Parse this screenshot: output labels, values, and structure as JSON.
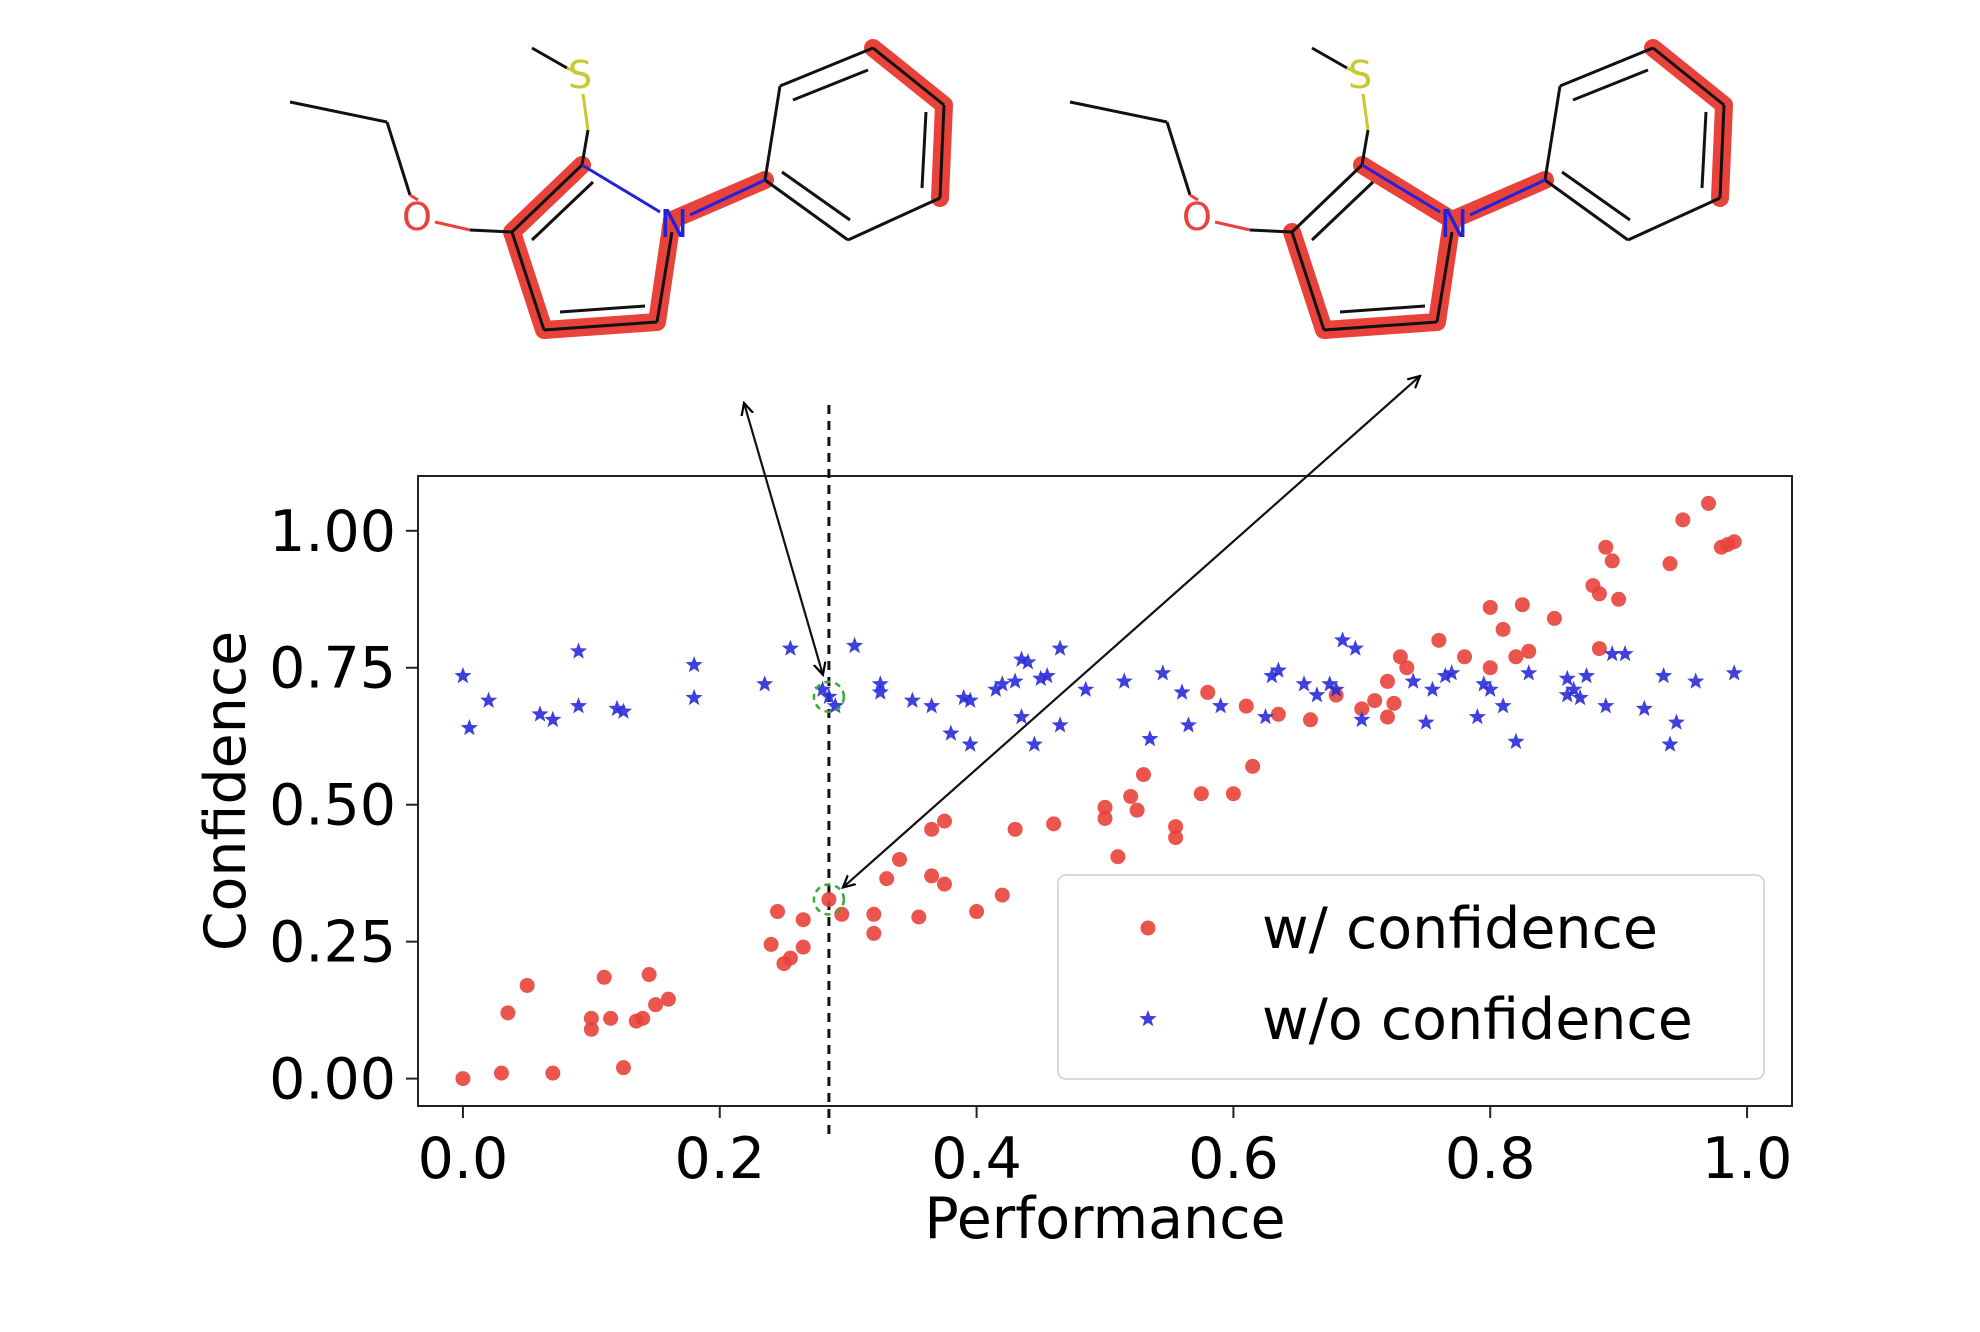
{
  "chart_data": {
    "type": "scatter",
    "title": "",
    "xlabel": "Performance",
    "ylabel": "Confidence",
    "xlim": [
      -0.035,
      1.035
    ],
    "ylim": [
      -0.05,
      1.1
    ],
    "xticks": [
      0.0,
      0.2,
      0.4,
      0.6,
      0.8,
      1.0
    ],
    "xtick_labels": [
      "0.0",
      "0.2",
      "0.4",
      "0.6",
      "0.8",
      "1.0"
    ],
    "yticks": [
      0.0,
      0.25,
      0.5,
      0.75,
      1.0
    ],
    "ytick_labels": [
      "0.00",
      "0.25",
      "0.50",
      "0.75",
      "1.00"
    ],
    "grid": false,
    "legend_placement": "lower-right",
    "threshold_line_x": 0.285,
    "highlighted_points": [
      {
        "series": "w/o confidence",
        "x": 0.285,
        "y": 0.697
      },
      {
        "series": "w/ confidence",
        "x": 0.285,
        "y": 0.327
      }
    ],
    "series": [
      {
        "name": "w/ confidence",
        "marker": "circle",
        "color": "#e8423a",
        "points": [
          [
            0.0,
            0.0
          ],
          [
            0.03,
            0.01
          ],
          [
            0.035,
            0.12
          ],
          [
            0.05,
            0.17
          ],
          [
            0.07,
            0.01
          ],
          [
            0.1,
            0.09
          ],
          [
            0.1,
            0.11
          ],
          [
            0.11,
            0.185
          ],
          [
            0.115,
            0.11
          ],
          [
            0.125,
            0.02
          ],
          [
            0.135,
            0.105
          ],
          [
            0.14,
            0.11
          ],
          [
            0.145,
            0.19
          ],
          [
            0.15,
            0.135
          ],
          [
            0.16,
            0.145
          ],
          [
            0.24,
            0.245
          ],
          [
            0.245,
            0.305
          ],
          [
            0.25,
            0.21
          ],
          [
            0.255,
            0.22
          ],
          [
            0.265,
            0.24
          ],
          [
            0.265,
            0.29
          ],
          [
            0.285,
            0.327
          ],
          [
            0.295,
            0.3
          ],
          [
            0.32,
            0.265
          ],
          [
            0.32,
            0.3
          ],
          [
            0.33,
            0.365
          ],
          [
            0.34,
            0.4
          ],
          [
            0.355,
            0.295
          ],
          [
            0.365,
            0.37
          ],
          [
            0.365,
            0.455
          ],
          [
            0.375,
            0.47
          ],
          [
            0.375,
            0.355
          ],
          [
            0.4,
            0.305
          ],
          [
            0.42,
            0.335
          ],
          [
            0.43,
            0.455
          ],
          [
            0.46,
            0.465
          ],
          [
            0.5,
            0.475
          ],
          [
            0.5,
            0.495
          ],
          [
            0.51,
            0.405
          ],
          [
            0.52,
            0.515
          ],
          [
            0.525,
            0.49
          ],
          [
            0.53,
            0.555
          ],
          [
            0.555,
            0.46
          ],
          [
            0.555,
            0.44
          ],
          [
            0.575,
            0.52
          ],
          [
            0.58,
            0.705
          ],
          [
            0.6,
            0.52
          ],
          [
            0.61,
            0.68
          ],
          [
            0.615,
            0.57
          ],
          [
            0.635,
            0.665
          ],
          [
            0.66,
            0.655
          ],
          [
            0.68,
            0.7
          ],
          [
            0.7,
            0.675
          ],
          [
            0.71,
            0.69
          ],
          [
            0.72,
            0.725
          ],
          [
            0.72,
            0.66
          ],
          [
            0.725,
            0.685
          ],
          [
            0.73,
            0.77
          ],
          [
            0.735,
            0.75
          ],
          [
            0.76,
            0.8
          ],
          [
            0.78,
            0.77
          ],
          [
            0.8,
            0.86
          ],
          [
            0.8,
            0.75
          ],
          [
            0.81,
            0.82
          ],
          [
            0.82,
            0.77
          ],
          [
            0.825,
            0.865
          ],
          [
            0.83,
            0.78
          ],
          [
            0.85,
            0.84
          ],
          [
            0.88,
            0.9
          ],
          [
            0.885,
            0.885
          ],
          [
            0.885,
            0.785
          ],
          [
            0.89,
            0.97
          ],
          [
            0.895,
            0.945
          ],
          [
            0.9,
            0.875
          ],
          [
            0.94,
            0.94
          ],
          [
            0.95,
            1.02
          ],
          [
            0.97,
            1.05
          ],
          [
            0.98,
            0.97
          ],
          [
            0.985,
            0.975
          ],
          [
            0.99,
            0.98
          ]
        ]
      },
      {
        "name": "w/o confidence",
        "marker": "star",
        "color": "#2b2bd9",
        "points": [
          [
            0.0,
            0.735
          ],
          [
            0.005,
            0.64
          ],
          [
            0.02,
            0.69
          ],
          [
            0.06,
            0.665
          ],
          [
            0.07,
            0.655
          ],
          [
            0.09,
            0.78
          ],
          [
            0.09,
            0.68
          ],
          [
            0.12,
            0.675
          ],
          [
            0.125,
            0.67
          ],
          [
            0.18,
            0.755
          ],
          [
            0.18,
            0.695
          ],
          [
            0.235,
            0.72
          ],
          [
            0.255,
            0.785
          ],
          [
            0.28,
            0.71
          ],
          [
            0.285,
            0.697
          ],
          [
            0.29,
            0.68
          ],
          [
            0.305,
            0.79
          ],
          [
            0.325,
            0.72
          ],
          [
            0.325,
            0.705
          ],
          [
            0.35,
            0.69
          ],
          [
            0.365,
            0.68
          ],
          [
            0.38,
            0.63
          ],
          [
            0.39,
            0.695
          ],
          [
            0.395,
            0.61
          ],
          [
            0.395,
            0.69
          ],
          [
            0.415,
            0.71
          ],
          [
            0.42,
            0.72
          ],
          [
            0.43,
            0.725
          ],
          [
            0.435,
            0.66
          ],
          [
            0.435,
            0.765
          ],
          [
            0.44,
            0.76
          ],
          [
            0.445,
            0.61
          ],
          [
            0.45,
            0.73
          ],
          [
            0.455,
            0.735
          ],
          [
            0.465,
            0.645
          ],
          [
            0.465,
            0.785
          ],
          [
            0.485,
            0.71
          ],
          [
            0.515,
            0.725
          ],
          [
            0.535,
            0.62
          ],
          [
            0.545,
            0.74
          ],
          [
            0.56,
            0.705
          ],
          [
            0.565,
            0.645
          ],
          [
            0.59,
            0.68
          ],
          [
            0.625,
            0.66
          ],
          [
            0.63,
            0.735
          ],
          [
            0.635,
            0.745
          ],
          [
            0.655,
            0.72
          ],
          [
            0.665,
            0.7
          ],
          [
            0.675,
            0.72
          ],
          [
            0.68,
            0.71
          ],
          [
            0.685,
            0.8
          ],
          [
            0.695,
            0.785
          ],
          [
            0.7,
            0.655
          ],
          [
            0.74,
            0.725
          ],
          [
            0.75,
            0.65
          ],
          [
            0.755,
            0.71
          ],
          [
            0.765,
            0.735
          ],
          [
            0.77,
            0.74
          ],
          [
            0.79,
            0.66
          ],
          [
            0.795,
            0.72
          ],
          [
            0.8,
            0.71
          ],
          [
            0.81,
            0.68
          ],
          [
            0.82,
            0.615
          ],
          [
            0.83,
            0.74
          ],
          [
            0.86,
            0.73
          ],
          [
            0.86,
            0.7
          ],
          [
            0.865,
            0.71
          ],
          [
            0.87,
            0.695
          ],
          [
            0.875,
            0.735
          ],
          [
            0.89,
            0.68
          ],
          [
            0.895,
            0.775
          ],
          [
            0.905,
            0.775
          ],
          [
            0.92,
            0.675
          ],
          [
            0.935,
            0.735
          ],
          [
            0.94,
            0.61
          ],
          [
            0.945,
            0.65
          ],
          [
            0.96,
            0.725
          ],
          [
            0.99,
            0.74
          ]
        ]
      }
    ],
    "legend": [
      {
        "label": "w/ confidence",
        "marker": "circle"
      },
      {
        "label": "w/o confidence",
        "marker": "star"
      }
    ]
  },
  "molecules": [
    {
      "atom_labels": {
        "sulfur": "S",
        "oxygen": "O",
        "nitrogen": "N"
      },
      "highlight_color": "#e8423a"
    },
    {
      "atom_labels": {
        "sulfur": "S",
        "oxygen": "O",
        "nitrogen": "N"
      },
      "highlight_color": "#e8423a"
    }
  ]
}
